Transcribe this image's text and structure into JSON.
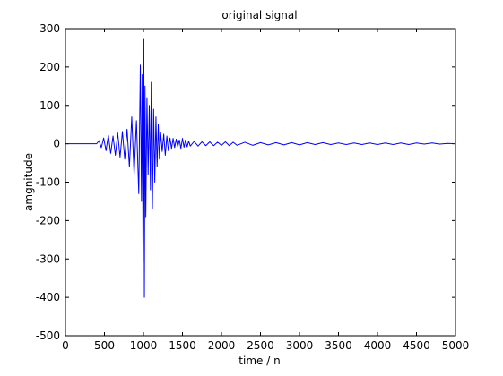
{
  "chart_data": {
    "type": "line",
    "title": "original signal",
    "xlabel": "time / n",
    "ylabel": "amgnitude",
    "xlim": [
      0,
      5000
    ],
    "ylim": [
      -500,
      300
    ],
    "x_ticks": [
      0,
      500,
      1000,
      1500,
      2000,
      2500,
      3000,
      3500,
      4000,
      4500,
      5000
    ],
    "y_ticks": [
      -500,
      -400,
      -300,
      -200,
      -100,
      0,
      100,
      200,
      300
    ],
    "x_tick_labels": [
      "0",
      "500",
      "1000",
      "1500",
      "2000",
      "2500",
      "3000",
      "3500",
      "4000",
      "4500",
      "5000"
    ],
    "y_tick_labels": [
      "-500",
      "-400",
      "-300",
      "-200",
      "-100",
      "0",
      "100",
      "200",
      "300"
    ],
    "grid": false,
    "line_color": "#0000ff",
    "series": [
      {
        "x": [
          0,
          400,
          430,
          460,
          490,
          520,
          550,
          580,
          610,
          640,
          670,
          700,
          730,
          760,
          790,
          820,
          850,
          880,
          910,
          940,
          960,
          975,
          985,
          995,
          1005,
          1012,
          1020,
          1030,
          1045,
          1060,
          1075,
          1090,
          1100,
          1115,
          1130,
          1145,
          1160,
          1175,
          1190,
          1205,
          1220,
          1240,
          1260,
          1280,
          1300,
          1320,
          1340,
          1360,
          1380,
          1400,
          1420,
          1440,
          1460,
          1480,
          1500,
          1520,
          1540,
          1560,
          1580,
          1600,
          1650,
          1700,
          1750,
          1800,
          1850,
          1900,
          1950,
          2000,
          2050,
          2100,
          2150,
          2200,
          2300,
          2400,
          2500,
          2600,
          2700,
          2800,
          2900,
          3000,
          3100,
          3200,
          3300,
          3400,
          3500,
          3600,
          3700,
          3800,
          3900,
          4000,
          4100,
          4200,
          4300,
          4400,
          4500,
          4600,
          4700,
          4800,
          4900,
          5000
        ],
        "y": [
          0,
          0,
          8,
          -10,
          15,
          -18,
          22,
          -25,
          20,
          -30,
          28,
          -35,
          32,
          -40,
          38,
          -60,
          70,
          -80,
          60,
          -130,
          205,
          -150,
          180,
          -310,
          272,
          -400,
          150,
          -190,
          120,
          -80,
          100,
          -120,
          160,
          -170,
          90,
          -100,
          70,
          -60,
          50,
          -40,
          30,
          -20,
          25,
          -30,
          20,
          -18,
          15,
          -12,
          14,
          -10,
          12,
          -8,
          10,
          -12,
          14,
          -9,
          10,
          -8,
          7,
          -6,
          6,
          -6,
          5,
          -5,
          5,
          -5,
          4,
          -4,
          5,
          -5,
          4,
          -4,
          4,
          -4,
          3,
          -3,
          3,
          -3,
          3,
          -3,
          3,
          -2,
          3,
          -2,
          2,
          -2,
          2,
          -2,
          2,
          -2,
          2,
          -2,
          2,
          -2,
          2,
          -1,
          2,
          -1,
          1,
          0
        ]
      }
    ]
  }
}
